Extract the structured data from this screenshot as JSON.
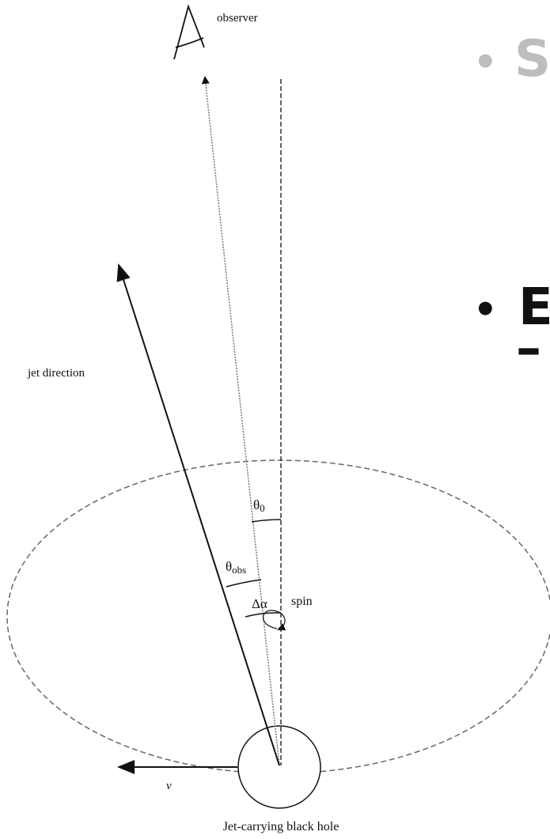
{
  "diagram": {
    "observer": "observer",
    "jet_direction": "jet direction",
    "theta0": {
      "symbol": "θ",
      "subscript": "0"
    },
    "theta_obs": {
      "symbol": "θ",
      "subscript": "obs"
    },
    "delta_alpha": "Δα",
    "spin": "spin",
    "velocity": "v",
    "caption": "Jet-carrying black hole"
  },
  "slide": {
    "bullet1": {
      "marker": "•",
      "text": "S"
    },
    "bullet2": {
      "marker": "•",
      "text": "E"
    },
    "sub_bullet": "–"
  }
}
